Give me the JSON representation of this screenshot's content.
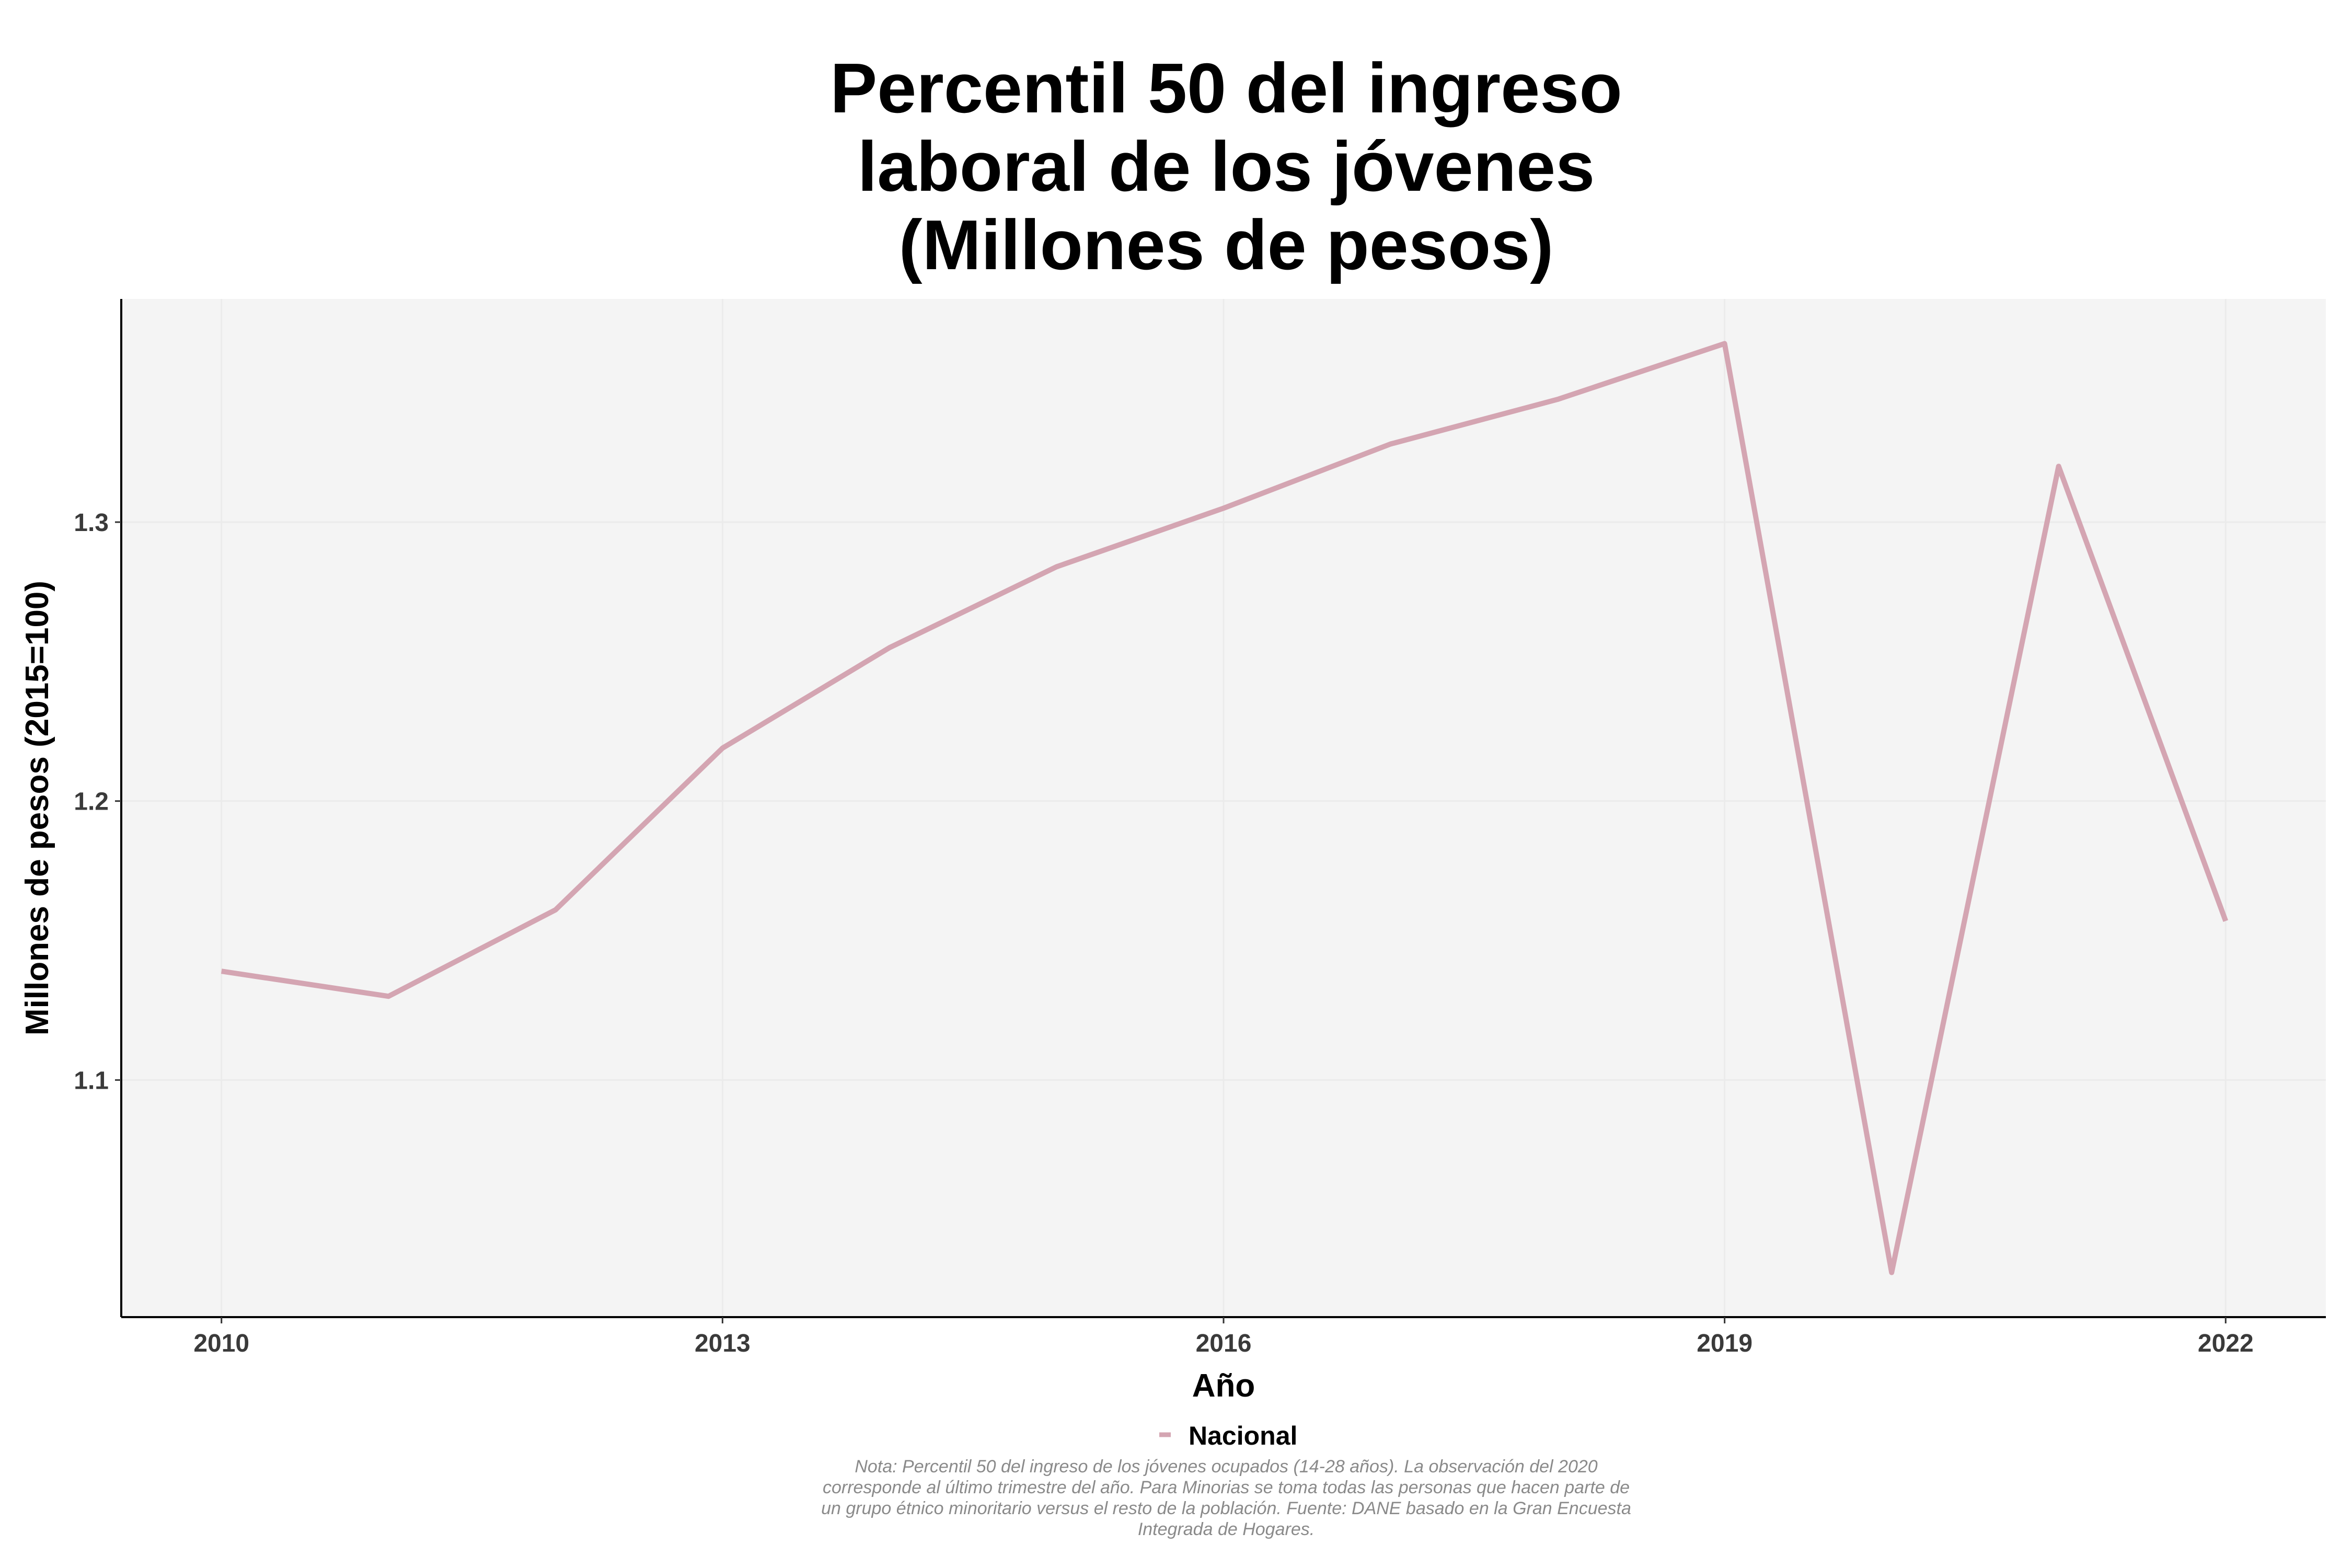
{
  "chart_data": {
    "type": "line",
    "title_lines": [
      "Percentil 50 del ingreso",
      "laboral de los jóvenes",
      "(Millones de pesos)"
    ],
    "xlabel": "Año",
    "ylabel": "Millones de pesos (2015=100)",
    "x_ticks": [
      2010,
      2013,
      2016,
      2019,
      2022
    ],
    "y_ticks": [
      1.1,
      1.2,
      1.3
    ],
    "y_tick_labels": [
      "1.1",
      "1.2",
      "1.3"
    ],
    "xlim": [
      2009.4,
      2022.6
    ],
    "ylim": [
      1.015,
      1.38
    ],
    "grid": true,
    "legend_position": "bottom",
    "series": [
      {
        "name": "Nacional",
        "color": "#d4a5b2",
        "x": [
          2010,
          2011,
          2012,
          2013,
          2014,
          2015,
          2016,
          2017,
          2018,
          2019,
          2020,
          2021,
          2022
        ],
        "values": [
          1.139,
          1.13,
          1.161,
          1.219,
          1.255,
          1.284,
          1.305,
          1.328,
          1.344,
          1.364,
          1.031,
          1.32,
          1.157
        ]
      }
    ],
    "note_lines": [
      "Nota: Percentil 50 del ingreso de los jóvenes ocupados (14-28 años). La observación del 2020",
      "corresponde al último trimestre del año. Para Minorias se toma todas las personas que hacen parte de",
      "un grupo étnico minoritario versus el resto de la población. Fuente: DANE basado en la Gran Encuesta",
      "Integrada de Hogares."
    ]
  }
}
